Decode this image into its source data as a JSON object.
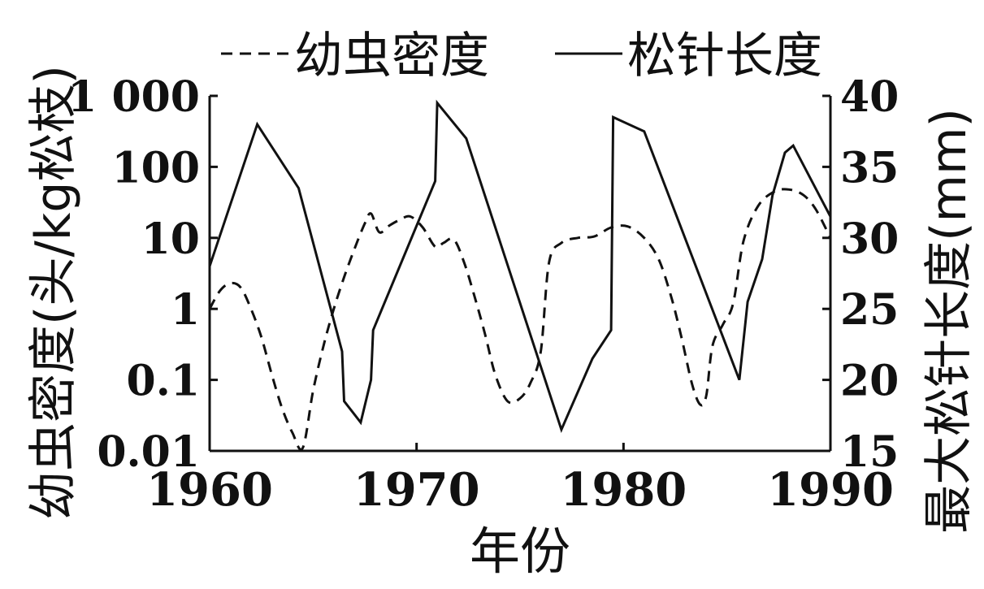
{
  "chart_data": {
    "type": "line",
    "legend": {
      "placement": "top",
      "items": [
        {
          "label": "幼虫密度",
          "style": "dashed"
        },
        {
          "label": "松针长度",
          "style": "solid"
        }
      ]
    },
    "xlabel": "年份",
    "xlim": [
      1960,
      1990
    ],
    "xticks": [
      "1960",
      "1970",
      "1980",
      "1990"
    ],
    "ylabel_left": "幼虫密度(头/kg松枝)",
    "ylim_left": [
      0.01,
      1000
    ],
    "yscale_left": "log",
    "yticks_left": [
      "0.01",
      "0.1",
      "1",
      "10",
      "100",
      "1 000"
    ],
    "ylabel_right": "最大松针长度(mm)",
    "ylim_right": [
      15,
      40
    ],
    "yticks_right": [
      "15",
      "20",
      "25",
      "30",
      "35",
      "40"
    ],
    "grid": false,
    "series": [
      {
        "name": "幼虫密度",
        "axis": "left",
        "style": "dashed",
        "points": [
          [
            1960.0,
            1.0
          ],
          [
            1960.5,
            1.8
          ],
          [
            1961.0,
            2.3
          ],
          [
            1961.5,
            2.0
          ],
          [
            1962.0,
            1.0
          ],
          [
            1962.5,
            0.4
          ],
          [
            1963.0,
            0.12
          ],
          [
            1963.5,
            0.04
          ],
          [
            1964.0,
            0.018
          ],
          [
            1964.5,
            0.011
          ],
          [
            1965.0,
            0.07
          ],
          [
            1965.5,
            0.3
          ],
          [
            1966.0,
            1.0
          ],
          [
            1966.5,
            2.8
          ],
          [
            1967.0,
            7.0
          ],
          [
            1967.5,
            16
          ],
          [
            1967.8,
            22
          ],
          [
            1968.2,
            12
          ],
          [
            1968.7,
            15
          ],
          [
            1969.2,
            18
          ],
          [
            1969.7,
            20
          ],
          [
            1970.3,
            14
          ],
          [
            1970.9,
            7.5
          ],
          [
            1971.3,
            8.5
          ],
          [
            1971.8,
            9.5
          ],
          [
            1972.3,
            4.5
          ],
          [
            1972.8,
            1.5
          ],
          [
            1973.3,
            0.45
          ],
          [
            1973.8,
            0.12
          ],
          [
            1974.4,
            0.05
          ],
          [
            1975.0,
            0.055
          ],
          [
            1975.5,
            0.09
          ],
          [
            1976.0,
            0.25
          ],
          [
            1976.4,
            4.5
          ],
          [
            1977.0,
            8.5
          ],
          [
            1977.8,
            10
          ],
          [
            1978.6,
            10.5
          ],
          [
            1979.4,
            14
          ],
          [
            1980.2,
            14.5
          ],
          [
            1981.0,
            10
          ],
          [
            1981.7,
            5.0
          ],
          [
            1982.3,
            1.5
          ],
          [
            1982.8,
            0.4
          ],
          [
            1983.3,
            0.09
          ],
          [
            1983.7,
            0.045
          ],
          [
            1984.0,
            0.06
          ],
          [
            1984.3,
            0.3
          ],
          [
            1984.8,
            0.6
          ],
          [
            1985.3,
            1.2
          ],
          [
            1985.8,
            9
          ],
          [
            1986.5,
            28
          ],
          [
            1987.3,
            45
          ],
          [
            1988.0,
            48
          ],
          [
            1988.7,
            40
          ],
          [
            1989.3,
            25
          ],
          [
            1990.0,
            10
          ]
        ]
      },
      {
        "name": "松针长度",
        "axis": "right",
        "style": "solid",
        "points": [
          [
            1960.0,
            28.0
          ],
          [
            1962.3,
            38.0
          ],
          [
            1964.3,
            33.5
          ],
          [
            1966.4,
            22.0
          ],
          [
            1966.5,
            18.5
          ],
          [
            1967.3,
            17.0
          ],
          [
            1967.8,
            20.0
          ],
          [
            1967.9,
            23.5
          ],
          [
            1970.9,
            34.0
          ],
          [
            1971.0,
            39.5
          ],
          [
            1972.4,
            37.0
          ],
          [
            1977.0,
            16.5
          ],
          [
            1978.5,
            21.5
          ],
          [
            1979.4,
            23.5
          ],
          [
            1979.5,
            38.5
          ],
          [
            1981.0,
            37.5
          ],
          [
            1985.6,
            20.0
          ],
          [
            1986.0,
            25.5
          ],
          [
            1986.7,
            28.5
          ],
          [
            1987.2,
            33.0
          ],
          [
            1987.8,
            36.0
          ],
          [
            1988.2,
            36.5
          ],
          [
            1990.0,
            31.5
          ]
        ]
      }
    ]
  }
}
